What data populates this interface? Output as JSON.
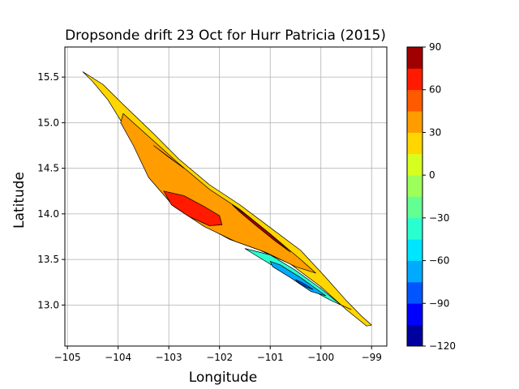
{
  "chart_data": {
    "type": "contour",
    "title": "Dropsonde drift 23 Oct for Hurr Patricia (2015)",
    "xlabel": "Longitude",
    "ylabel": "Latitude",
    "xlim": [
      -105.05,
      -98.7
    ],
    "ylim": [
      12.55,
      15.83
    ],
    "xticks": [
      -105,
      -104,
      -103,
      -102,
      -101,
      -100,
      -99
    ],
    "xtick_labels": [
      "−105",
      "−104",
      "−103",
      "−102",
      "−101",
      "−100",
      "−99"
    ],
    "yticks": [
      13.0,
      13.5,
      14.0,
      14.5,
      15.0,
      15.5
    ],
    "ytick_labels": [
      "13.0",
      "13.5",
      "14.0",
      "14.5",
      "15.0",
      "15.5"
    ],
    "grid": true,
    "colorbar": {
      "levels": [
        -120,
        -105,
        -90,
        -75,
        -60,
        -45,
        -30,
        -15,
        0,
        15,
        30,
        45,
        60,
        75,
        90
      ],
      "colors": [
        "#00009f",
        "#0000ff",
        "#0055ff",
        "#00aaff",
        "#00e5ff",
        "#2affd0",
        "#63ff93",
        "#9cff5a",
        "#d6ff20",
        "#ffd600",
        "#ff9c00",
        "#ff5a00",
        "#ff1a00",
        "#a00000"
      ],
      "ticks": [
        -120,
        -90,
        -60,
        -30,
        0,
        30,
        60,
        90
      ],
      "tick_labels": [
        "−120",
        "−90",
        "−60",
        "−30",
        "0",
        "30",
        "60",
        "90"
      ]
    },
    "regions": [
      {
        "level": 15,
        "color": "#ffd600",
        "polygon": [
          [
            -104.7,
            15.56
          ],
          [
            -104.3,
            15.42
          ],
          [
            -103.9,
            15.2
          ],
          [
            -103.3,
            14.88
          ],
          [
            -102.8,
            14.6
          ],
          [
            -102.2,
            14.32
          ],
          [
            -101.6,
            14.1
          ],
          [
            -101.0,
            13.85
          ],
          [
            -100.4,
            13.6
          ],
          [
            -99.9,
            13.3
          ],
          [
            -99.5,
            13.05
          ],
          [
            -99.2,
            12.88
          ],
          [
            -99.0,
            12.78
          ],
          [
            -99.1,
            12.77
          ],
          [
            -99.5,
            12.95
          ],
          [
            -100.0,
            13.2
          ],
          [
            -100.6,
            13.45
          ],
          [
            -101.2,
            13.6
          ],
          [
            -101.8,
            13.72
          ],
          [
            -102.4,
            13.9
          ],
          [
            -102.9,
            14.1
          ],
          [
            -103.3,
            14.35
          ],
          [
            -103.7,
            14.8
          ],
          [
            -104.2,
            15.25
          ],
          [
            -104.5,
            15.45
          ]
        ]
      },
      {
        "level": 45,
        "color": "#ff9c00",
        "polygon": [
          [
            -103.9,
            15.1
          ],
          [
            -103.3,
            14.8
          ],
          [
            -102.8,
            14.55
          ],
          [
            -102.2,
            14.27
          ],
          [
            -101.6,
            14.05
          ],
          [
            -101.0,
            13.78
          ],
          [
            -100.4,
            13.5
          ],
          [
            -100.1,
            13.35
          ],
          [
            -100.5,
            13.42
          ],
          [
            -101.1,
            13.58
          ],
          [
            -101.7,
            13.7
          ],
          [
            -102.3,
            13.86
          ],
          [
            -102.9,
            14.08
          ],
          [
            -103.4,
            14.4
          ],
          [
            -103.7,
            14.75
          ],
          [
            -103.95,
            15.0
          ]
        ]
      },
      {
        "level": 75,
        "color": "#ff1a00",
        "polygon": [
          [
            -103.1,
            14.25
          ],
          [
            -102.7,
            14.2
          ],
          [
            -102.3,
            14.08
          ],
          [
            -102.0,
            13.98
          ],
          [
            -101.95,
            13.88
          ],
          [
            -102.2,
            13.87
          ],
          [
            -102.6,
            13.97
          ],
          [
            -102.95,
            14.1
          ]
        ]
      },
      {
        "level": 90,
        "color": "#a00000",
        "polygon": [
          [
            -101.75,
            14.1
          ],
          [
            -101.4,
            13.96
          ],
          [
            -101.0,
            13.78
          ],
          [
            -100.6,
            13.58
          ],
          [
            -100.9,
            13.7
          ],
          [
            -101.3,
            13.88
          ],
          [
            -101.6,
            14.02
          ]
        ]
      },
      {
        "level": -30,
        "color": "#2affd0",
        "polygon": [
          [
            -101.5,
            13.62
          ],
          [
            -101.0,
            13.55
          ],
          [
            -100.5,
            13.38
          ],
          [
            -100.0,
            13.18
          ],
          [
            -99.6,
            13.0
          ],
          [
            -99.4,
            12.95
          ],
          [
            -99.8,
            13.05
          ],
          [
            -100.3,
            13.2
          ],
          [
            -100.8,
            13.38
          ],
          [
            -101.3,
            13.55
          ]
        ]
      },
      {
        "level": -60,
        "color": "#00aaff",
        "polygon": [
          [
            -101.0,
            13.48
          ],
          [
            -100.8,
            13.44
          ],
          [
            -100.4,
            13.3
          ],
          [
            -100.1,
            13.18
          ],
          [
            -99.9,
            13.1
          ],
          [
            -100.2,
            13.15
          ],
          [
            -100.6,
            13.3
          ],
          [
            -100.95,
            13.42
          ]
        ]
      },
      {
        "level": -90,
        "color": "#0055ff",
        "polygon": [
          [
            -100.5,
            13.28
          ],
          [
            -100.35,
            13.24
          ],
          [
            -100.15,
            13.17
          ],
          [
            -100.3,
            13.2
          ],
          [
            -100.45,
            13.25
          ]
        ]
      },
      {
        "level": 0,
        "color": "#d6ff20",
        "polygon": [
          [
            -103.3,
            14.75
          ],
          [
            -102.7,
            14.5
          ],
          [
            -103.0,
            14.62
          ]
        ]
      }
    ]
  }
}
